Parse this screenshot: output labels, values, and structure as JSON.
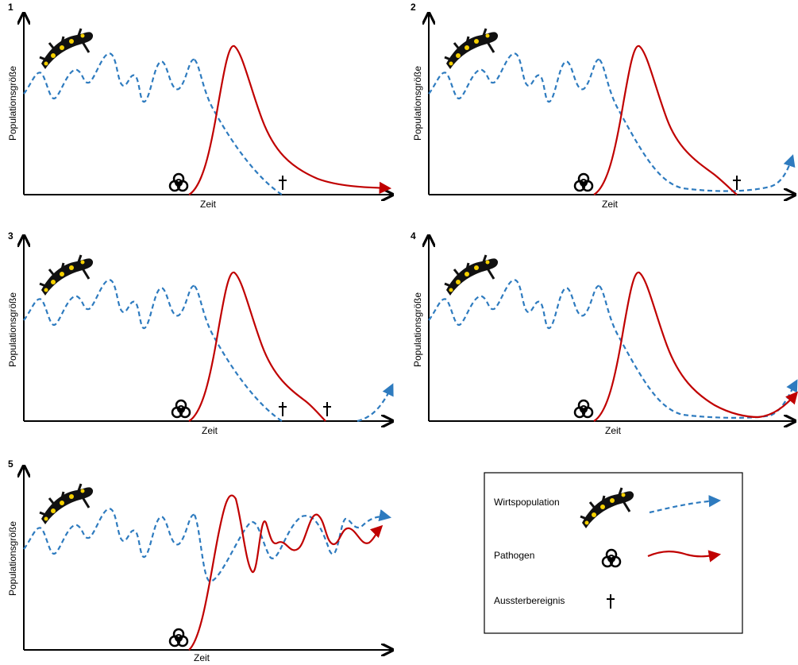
{
  "panels": [
    {
      "number": "1",
      "y_label": "Populationsgröße",
      "x_label": "Zeit"
    },
    {
      "number": "2",
      "y_label": "Populationsgröße",
      "x_label": "Zeit"
    },
    {
      "number": "3",
      "y_label": "Populationsgröße",
      "x_label": "Zeit"
    },
    {
      "number": "4",
      "y_label": "Populationsgröße",
      "x_label": "Zeit"
    },
    {
      "number": "5",
      "y_label": "Populationsgröße",
      "x_label": "Zeit"
    }
  ],
  "legend": {
    "items": [
      {
        "label": "Wirtspopulation"
      },
      {
        "label": "Pathogen"
      },
      {
        "label": "Aussterbereignis"
      }
    ]
  }
}
